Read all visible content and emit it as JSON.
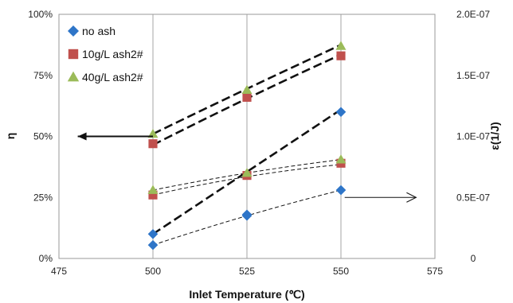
{
  "chart_data": {
    "type": "scatter",
    "xlabel": "Inlet Temperature (℃)",
    "ylabel_left": "η",
    "ylabel_right": "ε(1/J)",
    "xlim": [
      475,
      575
    ],
    "x_ticks": [
      475,
      500,
      525,
      550,
      575
    ],
    "x_tick_labels": [
      "475",
      "500",
      "525",
      "550",
      "575"
    ],
    "ylim_left": [
      0,
      1
    ],
    "y_left_ticks": [
      0,
      0.25,
      0.5,
      0.75,
      1
    ],
    "y_left_tick_labels": [
      "0%",
      "25%",
      "50%",
      "75%",
      "100%"
    ],
    "ylim_right": [
      0,
      2e-07
    ],
    "y_right_ticks": [
      0,
      5e-08,
      1e-07,
      1.5e-07,
      2e-07
    ],
    "y_right_tick_labels": [
      "0",
      "0.5E-07",
      "1.0E-07",
      "1.5E-07",
      "2.0E-07"
    ],
    "grid": "vertical",
    "legend_position": "top-left",
    "series": [
      {
        "name": "no ash",
        "marker": "diamond",
        "color": "#2e75c8",
        "axis": "left",
        "x": [
          500,
          525,
          550
        ],
        "y": [
          0.1,
          0.18,
          0.6
        ]
      },
      {
        "name": "no ash",
        "marker": "diamond",
        "color": "#2e75c8",
        "axis": "right",
        "x": [
          500,
          525,
          550
        ],
        "y": [
          1.1e-08,
          3.5e-08,
          5.6e-08
        ],
        "show_in_legend": false
      },
      {
        "name": "10g/L ash2#",
        "marker": "square",
        "color": "#c0504d",
        "axis": "left",
        "x": [
          500,
          525,
          550
        ],
        "y": [
          0.47,
          0.66,
          0.83
        ]
      },
      {
        "name": "10g/L ash2#",
        "marker": "square",
        "color": "#c0504d",
        "axis": "right",
        "x": [
          500,
          525,
          550
        ],
        "y": [
          5.2e-08,
          6.8e-08,
          7.8e-08
        ],
        "show_in_legend": false
      },
      {
        "name": "40g/L ash2#",
        "marker": "triangle",
        "color": "#9bbb59",
        "axis": "left",
        "x": [
          500,
          525,
          550
        ],
        "y": [
          0.51,
          0.69,
          0.87
        ]
      },
      {
        "name": "40g/L ash2#",
        "marker": "triangle",
        "color": "#9bbb59",
        "axis": "right",
        "x": [
          500,
          525,
          550
        ],
        "y": [
          5.6e-08,
          7e-08,
          8.1e-08
        ],
        "show_in_legend": false
      }
    ],
    "fit_lines": [
      {
        "style": "bold-dash",
        "axis": "left",
        "x": [
          500,
          525,
          550
        ],
        "y": [
          0.1,
          0.355,
          0.61
        ]
      },
      {
        "style": "bold-dash",
        "axis": "left",
        "x": [
          500,
          525,
          550
        ],
        "y": [
          0.465,
          0.655,
          0.835
        ]
      },
      {
        "style": "bold-dash",
        "axis": "left",
        "x": [
          500,
          525,
          550
        ],
        "y": [
          0.51,
          0.695,
          0.875
        ]
      },
      {
        "style": "thin-dash",
        "axis": "right",
        "x": [
          500,
          525,
          550
        ],
        "y": [
          1.1e-08,
          3.5e-08,
          5.6e-08
        ]
      },
      {
        "style": "thin-dash",
        "axis": "right",
        "x": [
          500,
          525,
          550
        ],
        "y": [
          5.2e-08,
          6.7e-08,
          7.7e-08
        ]
      },
      {
        "style": "thin-dash",
        "axis": "right",
        "x": [
          500,
          525,
          550
        ],
        "y": [
          5.6e-08,
          7e-08,
          8.1e-08
        ]
      }
    ],
    "arrows": [
      {
        "direction": "left",
        "axis": "left",
        "from": [
          500,
          0.5
        ],
        "to": [
          480,
          0.5
        ]
      },
      {
        "direction": "right",
        "axis": "right",
        "from": [
          551,
          5e-08
        ],
        "to": [
          570,
          5e-08
        ]
      }
    ]
  }
}
